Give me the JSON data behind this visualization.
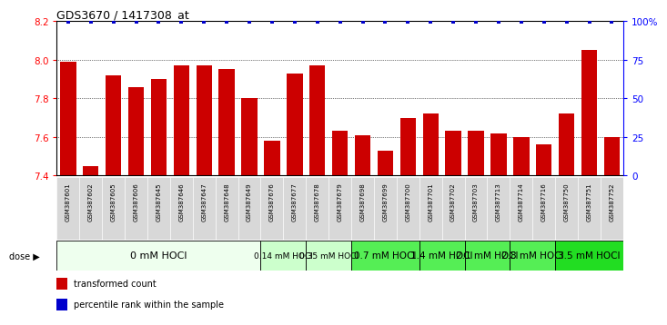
{
  "title": "GDS3670 / 1417308_at",
  "samples": [
    "GSM387601",
    "GSM387602",
    "GSM387605",
    "GSM387606",
    "GSM387645",
    "GSM387646",
    "GSM387647",
    "GSM387648",
    "GSM387649",
    "GSM387676",
    "GSM387677",
    "GSM387678",
    "GSM387679",
    "GSM387698",
    "GSM387699",
    "GSM387700",
    "GSM387701",
    "GSM387702",
    "GSM387703",
    "GSM387713",
    "GSM387714",
    "GSM387716",
    "GSM387750",
    "GSM387751",
    "GSM387752"
  ],
  "bar_values": [
    7.99,
    7.45,
    7.92,
    7.86,
    7.9,
    7.97,
    7.97,
    7.95,
    7.8,
    7.58,
    7.93,
    7.97,
    7.63,
    7.61,
    7.53,
    7.7,
    7.72,
    7.63,
    7.63,
    7.62,
    7.6,
    7.56,
    7.72,
    8.05,
    7.6
  ],
  "percentile_values": [
    100,
    100,
    100,
    100,
    100,
    100,
    100,
    100,
    100,
    100,
    100,
    100,
    100,
    100,
    100,
    100,
    100,
    100,
    100,
    100,
    100,
    100,
    100,
    100,
    100
  ],
  "dose_groups": [
    {
      "label": "0 mM HOCl",
      "start": 0,
      "end": 9,
      "color": "#eeffee",
      "fontsize": 8
    },
    {
      "label": "0.14 mM HOCl",
      "start": 9,
      "end": 11,
      "color": "#ccffcc",
      "fontsize": 6.5
    },
    {
      "label": "0.35 mM HOCl",
      "start": 11,
      "end": 13,
      "color": "#ccffcc",
      "fontsize": 6.5
    },
    {
      "label": "0.7 mM HOCl",
      "start": 13,
      "end": 16,
      "color": "#55ee55",
      "fontsize": 7.5
    },
    {
      "label": "1.4 mM HOCl",
      "start": 16,
      "end": 18,
      "color": "#55ee55",
      "fontsize": 7.5
    },
    {
      "label": "2.1 mM HOCl",
      "start": 18,
      "end": 20,
      "color": "#55ee55",
      "fontsize": 7.5
    },
    {
      "label": "2.8 mM HOCl",
      "start": 20,
      "end": 22,
      "color": "#55ee55",
      "fontsize": 7.5
    },
    {
      "label": "3.5 mM HOCl",
      "start": 22,
      "end": 25,
      "color": "#22dd22",
      "fontsize": 7.5
    }
  ],
  "bar_color": "#cc0000",
  "percentile_color": "#0000cc",
  "ymin": 7.4,
  "ymax": 8.2,
  "yticks": [
    7.4,
    7.6,
    7.8,
    8.0,
    8.2
  ],
  "right_yticks": [
    0,
    25,
    50,
    75,
    100
  ],
  "right_ylabels": [
    "0",
    "25",
    "50",
    "75",
    "100%"
  ],
  "background_color": "#ffffff",
  "xticklabel_bg": "#d8d8d8"
}
